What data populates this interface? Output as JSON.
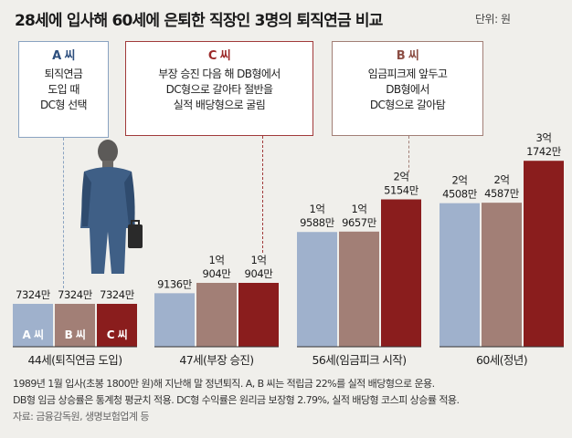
{
  "header": {
    "title": "28세에 입사해 60세에 은퇴한 직장인 3명의 퇴직연금 비교",
    "unit": "단위: 원"
  },
  "callouts": [
    {
      "who": "A 씨",
      "lines": [
        "퇴직연금",
        "도입 때",
        "DC형 선택"
      ]
    },
    {
      "who": "C 씨",
      "lines": [
        "부장 승진 다음 해 DB형에서",
        "DC형으로 갈아타 절반을",
        "실적 배당형으로 굴림"
      ]
    },
    {
      "who": "B 씨",
      "lines": [
        "임금피크제 앞두고",
        "DB형에서",
        "DC형으로 갈아탐"
      ]
    }
  ],
  "chart_data": {
    "type": "bar",
    "categories": [
      "44세(퇴직연금 도입)",
      "47세(부장 승진)",
      "56세(임금피크 시작)",
      "60세(정년)"
    ],
    "series": [
      {
        "name": "A 씨",
        "values": [
          73240000,
          91360000,
          195880000,
          245080000
        ],
        "labels": [
          [
            "7324만"
          ],
          [
            "9136만"
          ],
          [
            "1억",
            "9588만"
          ],
          [
            "2억",
            "4508만"
          ]
        ]
      },
      {
        "name": "B 씨",
        "values": [
          73240000,
          109040000,
          196570000,
          245870000
        ],
        "labels": [
          [
            "7324만"
          ],
          [
            "1억",
            "904만"
          ],
          [
            "1억",
            "9657만"
          ],
          [
            "2억",
            "4587만"
          ]
        ]
      },
      {
        "name": "C 씨",
        "values": [
          73240000,
          109040000,
          251540000,
          317420000
        ],
        "labels": [
          [
            "7324만"
          ],
          [
            "1억",
            "904만"
          ],
          [
            "2억",
            "5154만"
          ],
          [
            "3억",
            "1742만"
          ]
        ]
      }
    ],
    "colors": [
      "#9fb1cc",
      "#a27f76",
      "#8a1d1d"
    ]
  },
  "footnote": {
    "line1": "1989년 1월 입사(초봉 1800만 원)해 지난해 말 정년퇴직. A, B 씨는 적립금 22%를 실적 배당형으로 운용.",
    "line2": "DB형 임금 상승률은 통계청 평균치 적용. DC형 수익률은 원리금 보장형 2.79%, 실적 배당형 코스피 상승률 적용.",
    "source": "자료: 금융감독원, 생명보험업계 등"
  }
}
